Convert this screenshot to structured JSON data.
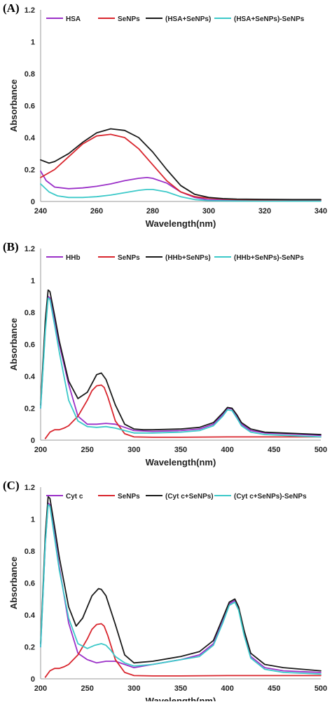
{
  "colors": {
    "c0": "#9b30c8",
    "c1": "#d9262e",
    "c2": "#1a1a1a",
    "c3": "#3cc9c9"
  },
  "chart_data": [
    {
      "type": "line",
      "panel_label": "(A)",
      "xlabel": "Wavelength(nm)",
      "ylabel": "Absorbance",
      "xlim": [
        240,
        340
      ],
      "ylim": [
        0,
        1.2
      ],
      "xticks": [
        240,
        260,
        280,
        300,
        320,
        340
      ],
      "yticks": [
        0,
        0.2,
        0.4,
        0.6,
        0.8,
        1,
        1.2
      ],
      "legend_position": "top",
      "series": [
        {
          "name": "HSA",
          "color_key": "c0",
          "x": [
            240,
            242,
            245,
            250,
            255,
            260,
            265,
            270,
            275,
            278,
            280,
            285,
            290,
            295,
            300,
            305,
            310,
            320,
            330,
            340
          ],
          "y": [
            0.19,
            0.13,
            0.09,
            0.08,
            0.085,
            0.095,
            0.11,
            0.13,
            0.145,
            0.15,
            0.145,
            0.115,
            0.06,
            0.025,
            0.01,
            0.008,
            0.006,
            0.005,
            0.004,
            0.004
          ]
        },
        {
          "name": "SeNPs",
          "color_key": "c1",
          "x": [
            240,
            245,
            250,
            255,
            260,
            265,
            270,
            275,
            280,
            285,
            290,
            295,
            300,
            305,
            310,
            320,
            330,
            340
          ],
          "y": [
            0.15,
            0.2,
            0.28,
            0.36,
            0.41,
            0.42,
            0.4,
            0.33,
            0.23,
            0.13,
            0.06,
            0.03,
            0.02,
            0.015,
            0.012,
            0.01,
            0.01,
            0.01
          ]
        },
        {
          "name": "(HSA+SeNPs)",
          "color_key": "c2",
          "x": [
            240,
            243,
            245,
            250,
            255,
            260,
            265,
            270,
            275,
            280,
            285,
            290,
            295,
            300,
            305,
            310,
            320,
            330,
            340
          ],
          "y": [
            0.26,
            0.24,
            0.25,
            0.3,
            0.37,
            0.43,
            0.455,
            0.445,
            0.4,
            0.31,
            0.2,
            0.1,
            0.045,
            0.025,
            0.018,
            0.015,
            0.013,
            0.012,
            0.012
          ]
        },
        {
          "name": "(HSA+SeNPs)-SeNPs",
          "color_key": "c3",
          "x": [
            240,
            243,
            246,
            250,
            255,
            260,
            265,
            270,
            275,
            278,
            280,
            285,
            290,
            295,
            300,
            310,
            320,
            330,
            340
          ],
          "y": [
            0.11,
            0.06,
            0.035,
            0.025,
            0.025,
            0.03,
            0.04,
            0.055,
            0.07,
            0.075,
            0.075,
            0.06,
            0.03,
            0.012,
            0.005,
            0.003,
            0.002,
            0.002,
            0.002
          ]
        }
      ]
    },
    {
      "type": "line",
      "panel_label": "(B)",
      "xlabel": "Wavelength(nm)",
      "ylabel": "Absorbance",
      "xlim": [
        200,
        500
      ],
      "ylim": [
        0,
        1.2
      ],
      "xticks": [
        200,
        250,
        300,
        350,
        400,
        450,
        500
      ],
      "yticks": [
        0,
        0.2,
        0.4,
        0.6,
        0.8,
        1,
        1.2
      ],
      "legend_position": "top",
      "series": [
        {
          "name": "HHb",
          "color_key": "c0",
          "x": [
            200,
            205,
            208,
            210,
            215,
            220,
            230,
            240,
            250,
            260,
            270,
            280,
            290,
            300,
            320,
            350,
            370,
            385,
            395,
            400,
            405,
            410,
            415,
            425,
            440,
            460,
            480,
            500
          ],
          "y": [
            0.2,
            0.7,
            0.9,
            0.89,
            0.75,
            0.6,
            0.35,
            0.15,
            0.1,
            0.1,
            0.105,
            0.1,
            0.08,
            0.06,
            0.055,
            0.06,
            0.07,
            0.1,
            0.16,
            0.2,
            0.195,
            0.15,
            0.1,
            0.06,
            0.045,
            0.04,
            0.035,
            0.03
          ]
        },
        {
          "name": "SeNPs",
          "color_key": "c1",
          "x": [
            205,
            210,
            215,
            220,
            225,
            230,
            240,
            250,
            255,
            260,
            265,
            268,
            272,
            280,
            290,
            300,
            320,
            350,
            400,
            450,
            500
          ],
          "y": [
            0.01,
            0.05,
            0.065,
            0.065,
            0.075,
            0.09,
            0.15,
            0.25,
            0.31,
            0.34,
            0.345,
            0.33,
            0.27,
            0.12,
            0.04,
            0.02,
            0.018,
            0.018,
            0.02,
            0.02,
            0.02
          ]
        },
        {
          "name": "(HHb+SeNPs)",
          "color_key": "c2",
          "x": [
            200,
            205,
            208,
            210,
            215,
            220,
            230,
            240,
            250,
            260,
            265,
            270,
            280,
            290,
            300,
            310,
            320,
            350,
            370,
            385,
            395,
            400,
            405,
            410,
            415,
            425,
            440,
            460,
            480,
            500
          ],
          "y": [
            0.22,
            0.75,
            0.94,
            0.93,
            0.78,
            0.62,
            0.37,
            0.26,
            0.3,
            0.41,
            0.42,
            0.38,
            0.22,
            0.1,
            0.07,
            0.065,
            0.065,
            0.07,
            0.08,
            0.11,
            0.17,
            0.205,
            0.2,
            0.16,
            0.11,
            0.07,
            0.05,
            0.045,
            0.04,
            0.035
          ]
        },
        {
          "name": "(HHb+SeNPs)-SeNPs",
          "color_key": "c3",
          "x": [
            200,
            205,
            208,
            210,
            215,
            220,
            230,
            240,
            250,
            260,
            270,
            280,
            290,
            300,
            320,
            350,
            370,
            385,
            395,
            400,
            405,
            410,
            415,
            425,
            440,
            460,
            480,
            500
          ],
          "y": [
            0.2,
            0.68,
            0.89,
            0.88,
            0.72,
            0.55,
            0.25,
            0.12,
            0.085,
            0.08,
            0.085,
            0.075,
            0.06,
            0.045,
            0.045,
            0.05,
            0.06,
            0.09,
            0.15,
            0.19,
            0.185,
            0.14,
            0.09,
            0.05,
            0.035,
            0.03,
            0.025,
            0.02
          ]
        }
      ]
    },
    {
      "type": "line",
      "panel_label": "(C)",
      "xlabel": "Wavelength(nm)",
      "ylabel": "Absorbance",
      "xlim": [
        200,
        500
      ],
      "ylim": [
        0,
        1.2
      ],
      "xticks": [
        200,
        250,
        300,
        350,
        400,
        450,
        500
      ],
      "yticks": [
        0,
        0.2,
        0.4,
        0.6,
        0.8,
        1,
        1.2
      ],
      "legend_position": "top",
      "series": [
        {
          "name": "Cyt c",
          "color_key": "c0",
          "x": [
            200,
            205,
            208,
            210,
            215,
            220,
            230,
            240,
            250,
            260,
            270,
            280,
            290,
            300,
            320,
            350,
            370,
            385,
            395,
            402,
            408,
            412,
            418,
            425,
            440,
            460,
            480,
            500
          ],
          "y": [
            0.2,
            0.85,
            1.1,
            1.09,
            0.9,
            0.7,
            0.35,
            0.16,
            0.12,
            0.1,
            0.11,
            0.11,
            0.09,
            0.07,
            0.09,
            0.12,
            0.15,
            0.22,
            0.36,
            0.47,
            0.49,
            0.44,
            0.28,
            0.14,
            0.07,
            0.05,
            0.045,
            0.04
          ]
        },
        {
          "name": "SeNPs",
          "color_key": "c1",
          "x": [
            205,
            210,
            215,
            220,
            225,
            230,
            240,
            250,
            255,
            260,
            265,
            268,
            272,
            280,
            290,
            300,
            320,
            350,
            400,
            450,
            500
          ],
          "y": [
            0.01,
            0.05,
            0.065,
            0.065,
            0.075,
            0.09,
            0.15,
            0.25,
            0.31,
            0.34,
            0.345,
            0.33,
            0.27,
            0.12,
            0.04,
            0.02,
            0.018,
            0.018,
            0.02,
            0.02,
            0.02
          ]
        },
        {
          "name": "(Cyt c+SeNPs)",
          "color_key": "c2",
          "x": [
            200,
            205,
            208,
            210,
            215,
            220,
            230,
            238,
            245,
            255,
            262,
            265,
            270,
            280,
            290,
            300,
            320,
            350,
            370,
            385,
            395,
            402,
            408,
            412,
            418,
            425,
            440,
            460,
            480,
            500
          ],
          "y": [
            0.22,
            0.9,
            1.14,
            1.13,
            0.95,
            0.76,
            0.45,
            0.33,
            0.38,
            0.52,
            0.565,
            0.56,
            0.52,
            0.34,
            0.15,
            0.1,
            0.11,
            0.14,
            0.17,
            0.24,
            0.38,
            0.48,
            0.5,
            0.45,
            0.3,
            0.16,
            0.09,
            0.07,
            0.06,
            0.05
          ]
        },
        {
          "name": "(Cyt c+SeNPs)-SeNPs",
          "color_key": "c3",
          "x": [
            200,
            205,
            208,
            210,
            215,
            220,
            230,
            240,
            250,
            258,
            265,
            270,
            275,
            280,
            290,
            300,
            320,
            350,
            370,
            385,
            395,
            402,
            408,
            412,
            418,
            425,
            440,
            460,
            480,
            500
          ],
          "y": [
            0.2,
            0.85,
            1.09,
            1.08,
            0.88,
            0.68,
            0.38,
            0.22,
            0.19,
            0.21,
            0.22,
            0.21,
            0.18,
            0.14,
            0.1,
            0.08,
            0.09,
            0.12,
            0.14,
            0.21,
            0.35,
            0.46,
            0.48,
            0.43,
            0.27,
            0.13,
            0.06,
            0.04,
            0.035,
            0.03
          ]
        }
      ]
    }
  ]
}
